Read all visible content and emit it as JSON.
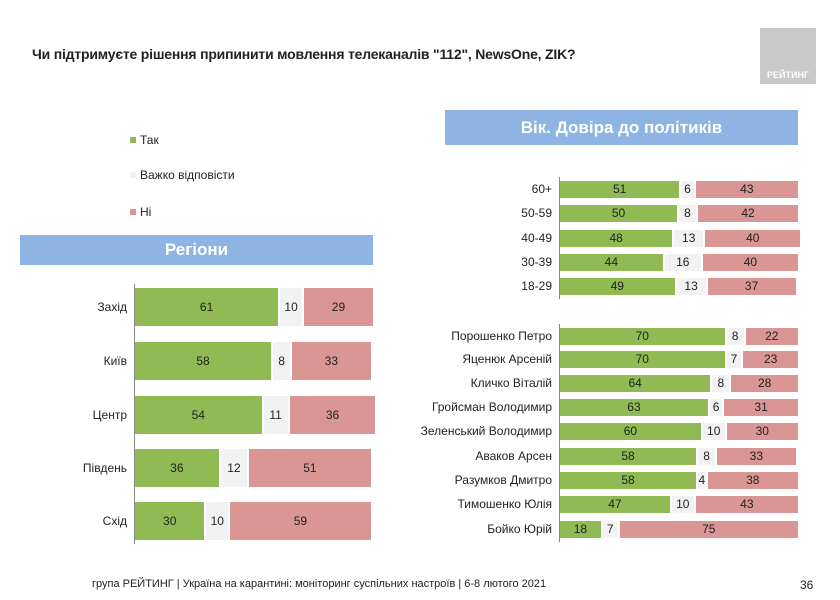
{
  "title": "Чи підтримуєте рішення припинити мовлення телеканалів \"112\", NewsOne, ZIK?",
  "logo_text": "РЕЙТИНГ",
  "legend": [
    {
      "label": "Так",
      "color": "#8fba54"
    },
    {
      "label": "Важко відповісти",
      "color": "#f2f2f2"
    },
    {
      "label": "Ні",
      "color": "#d99694"
    }
  ],
  "footer": "група РЕЙТИНГ | Україна на карантині: моніторинг суспільних настроїв | 6-8 лютого 2021",
  "page_number": "36",
  "chart_data": [
    {
      "type": "bar",
      "orientation": "horizontal-stacked-100",
      "title": "Регіони",
      "categories": [
        "Захід",
        "Київ",
        "Центр",
        "Південь",
        "Схід"
      ],
      "series": [
        {
          "name": "Так",
          "values": [
            61,
            58,
            54,
            36,
            30
          ]
        },
        {
          "name": "Важко відповісти",
          "values": [
            10,
            8,
            11,
            12,
            10
          ]
        },
        {
          "name": "Ні",
          "values": [
            29,
            33,
            36,
            51,
            59
          ]
        }
      ]
    },
    {
      "type": "bar",
      "orientation": "horizontal-stacked-100",
      "title": "Вік. Довіра до політиків",
      "categories": [
        "60+",
        "50-59",
        "40-49",
        "30-39",
        "18-29"
      ],
      "series": [
        {
          "name": "Так",
          "values": [
            51,
            50,
            48,
            44,
            49
          ]
        },
        {
          "name": "Важко відповісти",
          "values": [
            6,
            8,
            13,
            16,
            13
          ]
        },
        {
          "name": "Ні",
          "values": [
            43,
            42,
            40,
            40,
            37
          ]
        }
      ]
    },
    {
      "type": "bar",
      "orientation": "horizontal-stacked-100",
      "categories": [
        "Порошенко Петро",
        "Яценюк Арсеній",
        "Кличко Віталій",
        "Гройсман Володимир",
        "Зеленський Володимир",
        "Аваков Арсен",
        "Разумков Дмитро",
        "Тимошенко Юлія",
        "Бойко Юрій"
      ],
      "series": [
        {
          "name": "Так",
          "values": [
            70,
            70,
            64,
            63,
            60,
            58,
            58,
            47,
            18
          ]
        },
        {
          "name": "Важко відповісти",
          "values": [
            8,
            7,
            8,
            6,
            10,
            8,
            4,
            10,
            7
          ]
        },
        {
          "name": "Ні",
          "values": [
            22,
            23,
            28,
            31,
            30,
            33,
            38,
            43,
            75
          ]
        }
      ]
    }
  ]
}
